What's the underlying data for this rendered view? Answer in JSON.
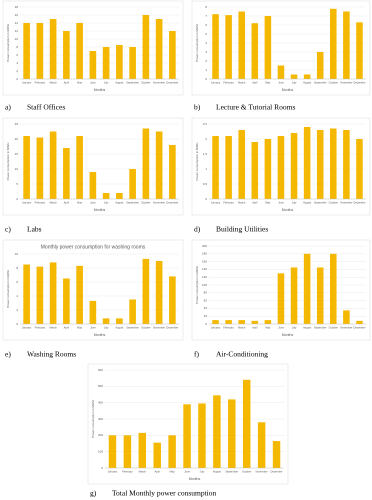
{
  "chart_data": [
    {
      "type": "bar",
      "panel_label": "a)",
      "caption": "Staff Offices",
      "y_label": "Power consumption in MWH",
      "x_label": "Months",
      "categories": [
        "January",
        "February",
        "March",
        "April",
        "May",
        "June",
        "July",
        "August",
        "September",
        "October",
        "November",
        "December"
      ],
      "values": [
        14,
        14,
        15,
        12,
        14,
        7,
        8,
        8.5,
        8,
        16,
        15,
        12
      ],
      "color": "#f5b800",
      "ylim": [
        0,
        18
      ],
      "yticks": [
        0,
        2,
        4,
        6,
        8,
        10,
        12,
        14,
        16,
        18
      ],
      "grid": true
    },
    {
      "type": "bar",
      "panel_label": "b)",
      "caption": "Lecture & Tutorial Rooms",
      "y_label": "Power consumption in MWH",
      "x_label": "Months",
      "categories": [
        "January",
        "February",
        "March",
        "April",
        "May",
        "June",
        "July",
        "August",
        "September",
        "October",
        "November",
        "December"
      ],
      "values": [
        7.2,
        7.1,
        7.5,
        6.2,
        7,
        1.5,
        0.5,
        0.5,
        3,
        7.8,
        7.5,
        6.3
      ],
      "color": "#f5b800",
      "ylim": [
        0,
        8
      ],
      "yticks": [
        0,
        1,
        2,
        3,
        4,
        5,
        6,
        7,
        8
      ],
      "grid": true
    },
    {
      "type": "bar",
      "panel_label": "c)",
      "caption": "Labs",
      "y_label": "Power consumption in MWH",
      "x_label": "Months",
      "categories": [
        "January",
        "February",
        "March",
        "April",
        "May",
        "June",
        "July",
        "August",
        "September",
        "October",
        "November",
        "December"
      ],
      "values": [
        21,
        20.5,
        22.5,
        17,
        21,
        9,
        2,
        2,
        10,
        23.5,
        22.5,
        18
      ],
      "color": "#f5b800",
      "ylim": [
        0,
        25
      ],
      "yticks": [
        0,
        5,
        10,
        15,
        20,
        25
      ],
      "grid": true
    },
    {
      "type": "bar",
      "panel_label": "d)",
      "caption": "Building Utilities",
      "y_label": "Power consumption in MWH",
      "x_label": "Months",
      "categories": [
        "January",
        "February",
        "March",
        "April",
        "May",
        "June",
        "July",
        "August",
        "September",
        "October",
        "November",
        "December"
      ],
      "values": [
        2.1,
        2.1,
        2.3,
        1.9,
        2,
        2.1,
        2.2,
        2.4,
        2.3,
        2.35,
        2.3,
        2
      ],
      "color": "#f5b800",
      "ylim": [
        0,
        2.5
      ],
      "yticks": [
        0,
        0.5,
        1,
        1.5,
        2,
        2.5
      ],
      "grid": true
    },
    {
      "type": "bar",
      "panel_label": "e)",
      "caption": "Washing Rooms",
      "title": "Monthly power consumption for washing rooms",
      "y_label": "Power consumption in MWH",
      "x_label": "Months",
      "categories": [
        "January",
        "February",
        "March",
        "April",
        "May",
        "June",
        "July",
        "August",
        "September",
        "October",
        "November",
        "December"
      ],
      "values": [
        8.5,
        8.2,
        8.8,
        6.5,
        8.3,
        3.3,
        0.8,
        0.8,
        3.5,
        9.3,
        9,
        6.8
      ],
      "color": "#f5b800",
      "ylim": [
        0,
        10
      ],
      "yticks": [
        0,
        2,
        4,
        6,
        8,
        10
      ],
      "grid": true
    },
    {
      "type": "bar",
      "panel_label": "f)",
      "caption": "Air-Conditioning",
      "y_label": "Power consumption in MWH",
      "x_label": "Months",
      "categories": [
        "January",
        "February",
        "March",
        "April",
        "May",
        "June",
        "July",
        "August",
        "September",
        "October",
        "November",
        "December"
      ],
      "values": [
        10,
        10,
        10,
        8,
        10,
        130,
        145,
        180,
        145,
        180,
        35,
        8
      ],
      "color": "#f5b800",
      "ylim": [
        0,
        200
      ],
      "yticks": [
        0,
        20,
        40,
        60,
        80,
        100,
        120,
        140,
        160,
        180,
        200
      ],
      "grid": true
    },
    {
      "type": "bar",
      "panel_label": "g)",
      "caption": "Total Monthly power consumption",
      "y_label": "Power consumption in MWH",
      "x_label": "Months",
      "categories": [
        "January",
        "February",
        "March",
        "April",
        "May",
        "June",
        "July",
        "August",
        "September",
        "October",
        "November",
        "December"
      ],
      "values": [
        200,
        200,
        215,
        155,
        200,
        390,
        395,
        445,
        420,
        540,
        280,
        165
      ],
      "color": "#f5b800",
      "ylim": [
        0,
        600
      ],
      "yticks": [
        0,
        100,
        200,
        300,
        400,
        500,
        600
      ],
      "grid": true
    }
  ]
}
